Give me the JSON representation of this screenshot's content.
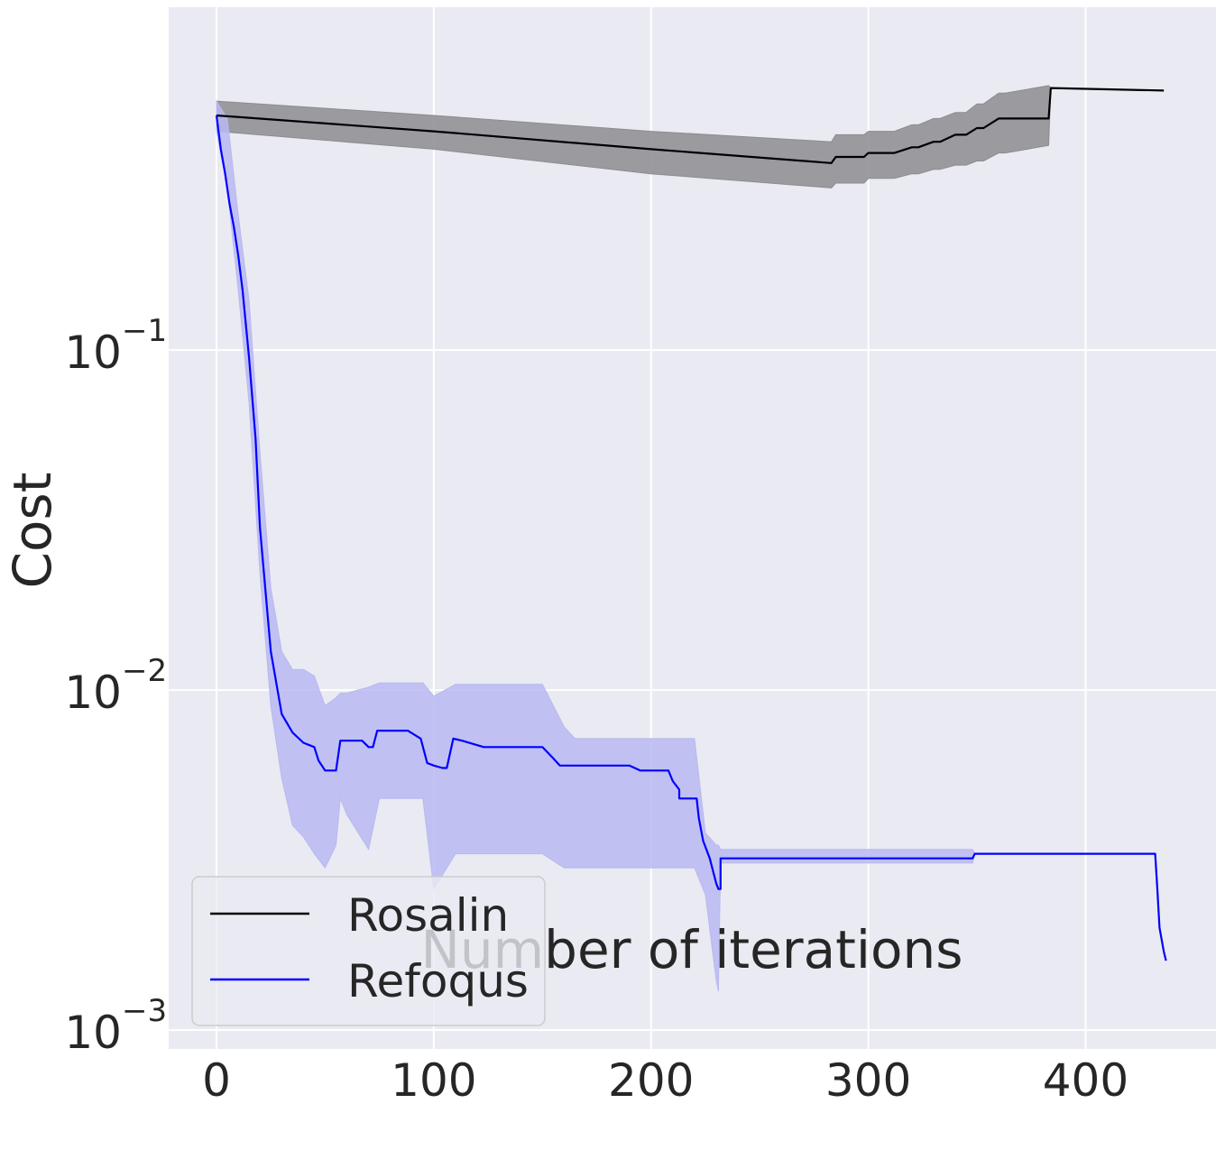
{
  "chart_data": {
    "type": "line",
    "title": "",
    "xlabel": "Number of iterations",
    "ylabel": "Cost",
    "xlim": [
      -22,
      460
    ],
    "ylim": [
      0.00088,
      1.02
    ],
    "yscale": "log",
    "grid": true,
    "legend_position": "lower-left",
    "x_ticks": [
      {
        "value": 0,
        "label": "0"
      },
      {
        "value": 100,
        "label": "100"
      },
      {
        "value": 200,
        "label": "200"
      },
      {
        "value": 300,
        "label": "300"
      },
      {
        "value": 400,
        "label": "400"
      }
    ],
    "y_ticks": [
      {
        "value": 0.1,
        "base": "10",
        "exp": "−1"
      },
      {
        "value": 0.01,
        "base": "10",
        "exp": "−2"
      },
      {
        "value": 0.001,
        "base": "10",
        "exp": "−3"
      }
    ],
    "background_color": "#eaeaf2",
    "grid_color": "#ffffff",
    "series": [
      {
        "name": "Rosalin",
        "color": "#000000",
        "band_color": "#8c8c91",
        "x": [
          0,
          100,
          200,
          283,
          285,
          298,
          300,
          312,
          320,
          323,
          330,
          333,
          340,
          345,
          350,
          353,
          360,
          363,
          383,
          384,
          436
        ],
        "y": [
          0.49,
          0.44,
          0.39,
          0.355,
          0.37,
          0.37,
          0.38,
          0.38,
          0.395,
          0.395,
          0.41,
          0.41,
          0.43,
          0.43,
          0.45,
          0.45,
          0.48,
          0.48,
          0.48,
          0.59,
          0.58
        ],
        "band_x": [
          0,
          100,
          200,
          283,
          285,
          298,
          300,
          312,
          320,
          323,
          330,
          333,
          340,
          345,
          350,
          353,
          360,
          363,
          383,
          384
        ],
        "band_low": [
          0.44,
          0.39,
          0.33,
          0.3,
          0.31,
          0.31,
          0.32,
          0.32,
          0.33,
          0.33,
          0.34,
          0.34,
          0.35,
          0.35,
          0.36,
          0.36,
          0.38,
          0.38,
          0.4,
          0.59
        ],
        "band_high": [
          0.54,
          0.49,
          0.44,
          0.41,
          0.43,
          0.43,
          0.44,
          0.44,
          0.46,
          0.46,
          0.48,
          0.48,
          0.5,
          0.5,
          0.53,
          0.53,
          0.57,
          0.57,
          0.6,
          0.59
        ]
      },
      {
        "name": "Refoqus",
        "color": "#0000ff",
        "band_color": "#b9b9f2",
        "x": [
          0,
          2,
          4,
          6,
          8,
          10,
          12,
          15,
          18,
          20,
          25,
          30,
          35,
          40,
          45,
          47,
          50,
          52,
          55,
          57,
          62,
          67,
          70,
          72,
          74,
          80,
          88,
          94,
          97,
          100,
          104,
          106,
          109,
          113,
          123,
          150,
          155,
          158,
          190,
          195,
          208,
          210,
          210,
          213,
          213,
          218,
          221,
          222,
          222,
          224,
          227,
          230,
          231,
          232,
          232,
          282,
          348,
          349,
          432,
          433,
          434,
          436,
          437
        ],
        "y": [
          0.49,
          0.39,
          0.33,
          0.27,
          0.23,
          0.19,
          0.15,
          0.095,
          0.055,
          0.03,
          0.013,
          0.0085,
          0.0075,
          0.007,
          0.0068,
          0.0062,
          0.0058,
          0.0058,
          0.0058,
          0.0071,
          0.0071,
          0.0071,
          0.0068,
          0.0068,
          0.0076,
          0.0076,
          0.0076,
          0.0072,
          0.0061,
          0.006,
          0.0059,
          0.0059,
          0.0072,
          0.0071,
          0.0068,
          0.0068,
          0.0063,
          0.006,
          0.006,
          0.0058,
          0.0058,
          0.0054,
          0.0054,
          0.0051,
          0.0048,
          0.0048,
          0.0048,
          0.0042,
          0.0042,
          0.0036,
          0.0032,
          0.0027,
          0.0026,
          0.0026,
          0.0032,
          0.0032,
          0.0032,
          0.0033,
          0.0033,
          0.0026,
          0.002,
          0.0017,
          0.0016
        ],
        "band_x": [
          0,
          5,
          10,
          15,
          20,
          25,
          30,
          35,
          40,
          45,
          50,
          55,
          57,
          60,
          70,
          75,
          85,
          95,
          100,
          110,
          120,
          150,
          160,
          165,
          190,
          200,
          220,
          225,
          230,
          231,
          232,
          282,
          348,
          349
        ],
        "band_low": [
          0.44,
          0.3,
          0.15,
          0.07,
          0.022,
          0.009,
          0.0055,
          0.004,
          0.0037,
          0.0033,
          0.003,
          0.0035,
          0.0048,
          0.0043,
          0.0034,
          0.0048,
          0.0048,
          0.0048,
          0.0026,
          0.0033,
          0.0033,
          0.0033,
          0.003,
          0.003,
          0.003,
          0.003,
          0.003,
          0.0025,
          0.0014,
          0.0013,
          0.0031,
          0.0031,
          0.0031,
          0.0033
        ],
        "band_high": [
          0.54,
          0.48,
          0.25,
          0.14,
          0.05,
          0.02,
          0.013,
          0.0115,
          0.0115,
          0.011,
          0.009,
          0.0095,
          0.0098,
          0.0098,
          0.0102,
          0.0105,
          0.0105,
          0.0105,
          0.0096,
          0.0104,
          0.0104,
          0.0104,
          0.0078,
          0.0072,
          0.0072,
          0.0072,
          0.0072,
          0.0038,
          0.0035,
          0.0035,
          0.0034,
          0.0034,
          0.0034,
          0.0033
        ]
      }
    ]
  }
}
